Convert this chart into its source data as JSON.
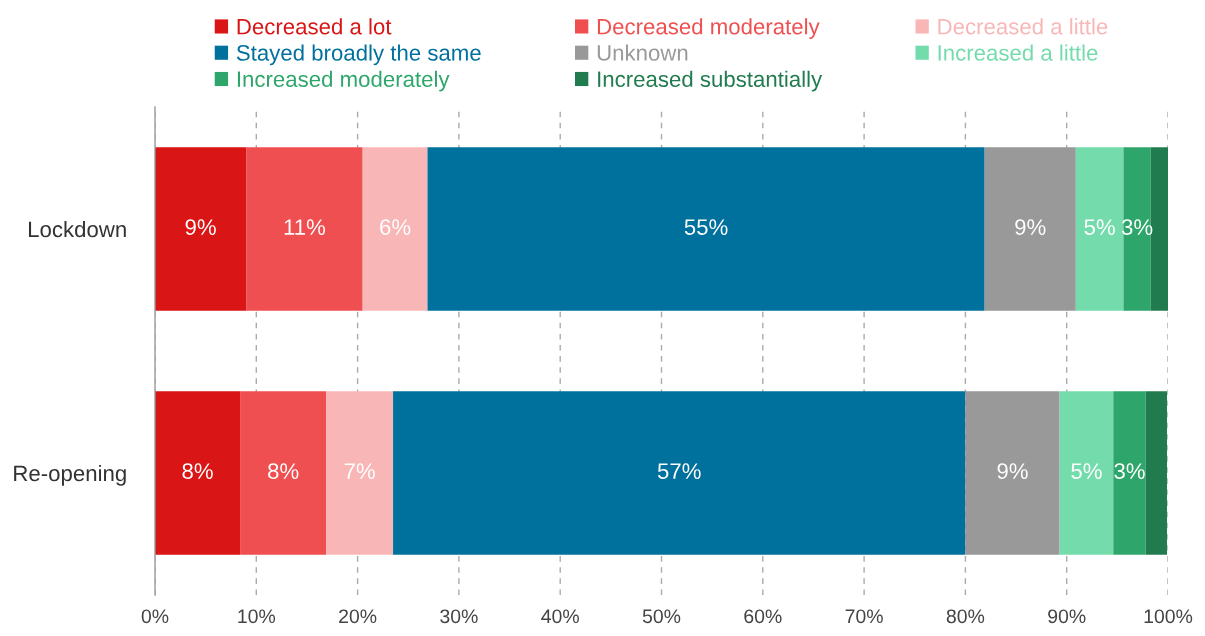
{
  "chart_data": {
    "type": "bar",
    "orientation": "horizontal",
    "stacked": true,
    "categories": [
      "Lockdown",
      "Re-opening"
    ],
    "series": [
      {
        "name": "Decreased a lot",
        "color": "#d91515",
        "values": [
          9.0,
          8.4
        ],
        "value_labels": [
          "9%",
          "8%"
        ]
      },
      {
        "name": "Decreased moderately",
        "color": "#ef4f50",
        "values": [
          11.5,
          8.5
        ],
        "value_labels": [
          "11%",
          "8%"
        ]
      },
      {
        "name": "Decreased a little",
        "color": "#f8b6b7",
        "values": [
          6.4,
          6.6
        ],
        "value_labels": [
          "6%",
          "7%"
        ]
      },
      {
        "name": "Stayed broadly the same",
        "color": "#00709d",
        "values": [
          55.0,
          56.5
        ],
        "value_labels": [
          "55%",
          "57%"
        ]
      },
      {
        "name": "Unknown",
        "color": "#999999",
        "values": [
          9.0,
          9.3
        ],
        "value_labels": [
          "9%",
          "9%"
        ]
      },
      {
        "name": "Increased a little",
        "color": "#74dbac",
        "values": [
          4.7,
          5.3
        ],
        "value_labels": [
          "5%",
          "5%"
        ]
      },
      {
        "name": "Increased moderately",
        "color": "#2ea66b",
        "values": [
          2.7,
          3.2
        ],
        "value_labels": [
          "3%",
          "3%"
        ]
      },
      {
        "name": "Increased substantially",
        "color": "#207b4f",
        "values": [
          1.7,
          2.1
        ],
        "value_labels": [
          null,
          null
        ]
      }
    ],
    "xlim": [
      0,
      100
    ],
    "xticks": [
      {
        "value": 0,
        "label": "0%"
      },
      {
        "value": 10,
        "label": "10%"
      },
      {
        "value": 20,
        "label": "20%"
      },
      {
        "value": 30,
        "label": "30%"
      },
      {
        "value": 40,
        "label": "40%"
      },
      {
        "value": 50,
        "label": "50%"
      },
      {
        "value": 60,
        "label": "60%"
      },
      {
        "value": 70,
        "label": "70%"
      },
      {
        "value": 80,
        "label": "80%"
      },
      {
        "value": 90,
        "label": "90%"
      },
      {
        "value": 100,
        "label": "100%"
      }
    ],
    "grid": "x",
    "legend": "top"
  }
}
